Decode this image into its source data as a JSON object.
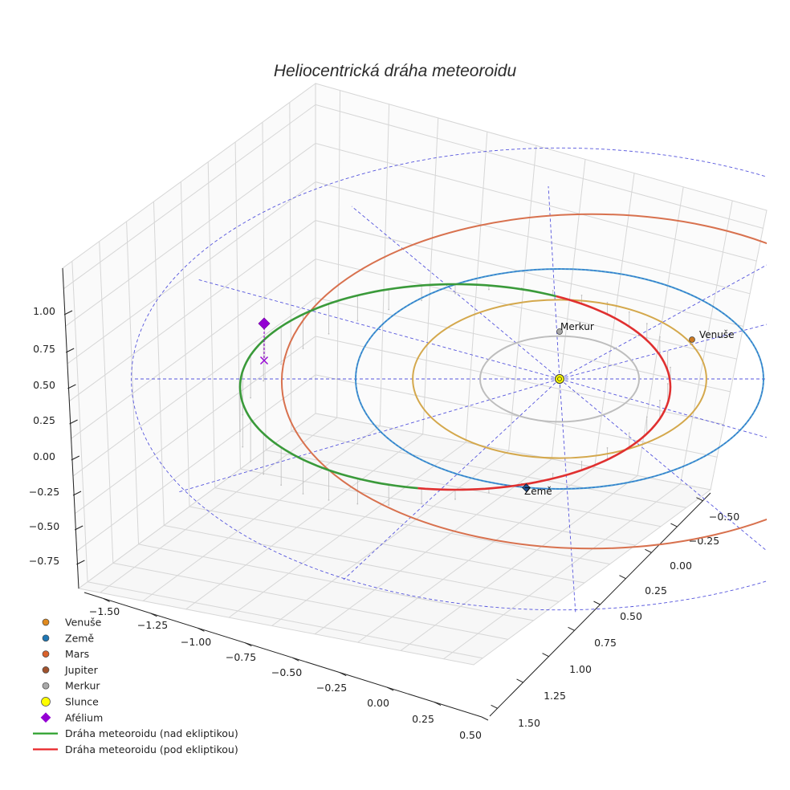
{
  "chart_data": {
    "type": "line",
    "title": "Heliocentrická dráha meteoroidu",
    "projection": "3d",
    "grid": true,
    "legend_position": "bottom-left",
    "axes": {
      "x": {
        "ticks": [
          "−1.50",
          "−1.25",
          "−1.00",
          "−0.75",
          "−0.50",
          "−0.25",
          "0.00",
          "0.25",
          "0.50"
        ]
      },
      "y": {
        "ticks": [
          "−0.50",
          "−0.25",
          "0.00",
          "0.25",
          "0.50",
          "0.75",
          "1.00",
          "1.25",
          "1.50"
        ]
      },
      "z": {
        "ticks": [
          "1.00",
          "0.75",
          "0.50",
          "0.25",
          "0.00",
          "−0.25",
          "−0.50",
          "−0.75"
        ]
      }
    },
    "orbits": [
      {
        "name": "Merkur",
        "color": "#bdbdbd",
        "radius_au": 0.39
      },
      {
        "name": "Venuše",
        "color": "#d4a84c",
        "radius_au": 0.72
      },
      {
        "name": "Země",
        "color": "#4a9fcf",
        "radius_au": 1.0
      },
      {
        "name": "Mars",
        "color": "#d8714e",
        "radius_au": 1.52
      }
    ],
    "meteoroid_orbit": [
      {
        "name": "Dráha meteoroidu (nad ekliptikou)",
        "color": "#3a9a3a"
      },
      {
        "name": "Dráha meteoroidu (pod ekliptikou)",
        "color": "#e03030"
      }
    ],
    "planet_labels": [
      {
        "text": "Merkur",
        "color": "#a9a9a9"
      },
      {
        "text": "Venuše",
        "color": "#cc7a22"
      },
      {
        "text": "Země",
        "color": "#1f6fb0"
      }
    ],
    "legend": [
      {
        "label": "Venuše",
        "symbol": "circle",
        "color": "#e08a1e"
      },
      {
        "label": "Země",
        "symbol": "circle",
        "color": "#1f77b4"
      },
      {
        "label": "Mars",
        "symbol": "circle",
        "color": "#d9622b"
      },
      {
        "label": "Jupiter",
        "symbol": "circle",
        "color": "#a0522d"
      },
      {
        "label": "Merkur",
        "symbol": "circle",
        "color": "#a9a9a9"
      },
      {
        "label": "Slunce",
        "symbol": "circle",
        "color": "#ffff00"
      },
      {
        "label": "Afélium",
        "symbol": "diamond",
        "color": "#9400d3"
      },
      {
        "label": "Dráha meteoroidu (nad ekliptikou)",
        "symbol": "line",
        "color": "#2ca02c"
      },
      {
        "label": "Dráha meteoroidu (pod ekliptikou)",
        "symbol": "line",
        "color": "#e8262a"
      }
    ]
  }
}
